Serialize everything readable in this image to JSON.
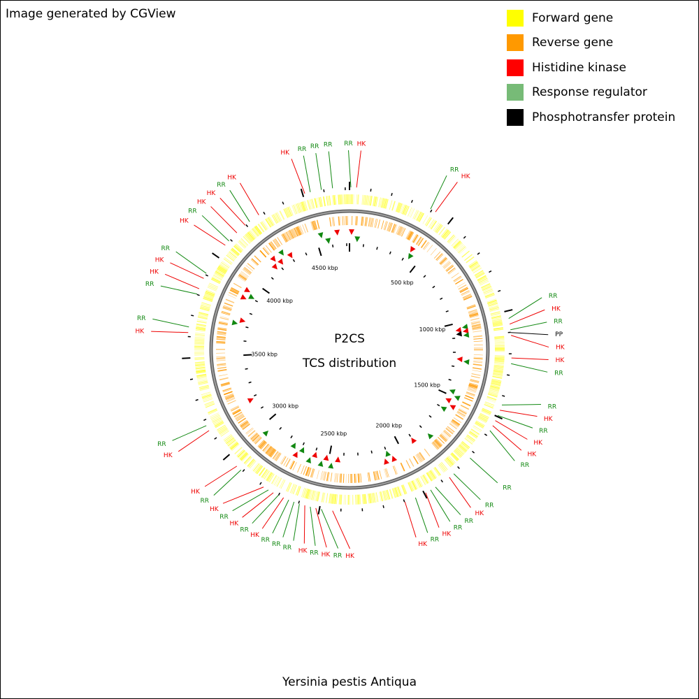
{
  "credit": "Image generated by CGView",
  "organism": "Yersinia pestis Antiqua",
  "center": {
    "line1": "P2CS",
    "line2": "TCS distribution"
  },
  "legend": [
    {
      "label": "Forward gene",
      "color": "#ffff00",
      "icon": "square-swatch"
    },
    {
      "label": "Reverse gene",
      "color": "#ff9900",
      "icon": "square-swatch"
    },
    {
      "label": "Histidine kinase",
      "color": "#ff0000",
      "icon": "square-swatch"
    },
    {
      "label": "Response regulator",
      "color": "#77bb77",
      "icon": "square-swatch"
    },
    {
      "label": "Phosphotransfer protein",
      "color": "#000000",
      "icon": "square-swatch"
    }
  ],
  "colors": {
    "forward": "#ffff44",
    "reverse": "#ff9900",
    "backbone": "#777777",
    "hk": "#ee0000",
    "rr": "#118811",
    "pp": "#000000"
  },
  "genome": {
    "length_kbp": 4720,
    "tick_labels": [
      "500 kbp",
      "1000 kbp",
      "1500 kbp",
      "2000 kbp",
      "2500 kbp",
      "3000 kbp",
      "3500 kbp",
      "4000 kbp",
      "4500 kbp"
    ],
    "tick_values_kbp": [
      500,
      1000,
      1500,
      2000,
      2500,
      3000,
      3500,
      4000,
      4500
    ]
  },
  "features": [
    {
      "type": "RR",
      "deg": 0.5
    },
    {
      "type": "HK",
      "deg": 2.5
    },
    {
      "type": "RR",
      "deg": 30
    },
    {
      "type": "HK",
      "deg": 32
    },
    {
      "type": "RR",
      "deg": 79
    },
    {
      "type": "HK",
      "deg": 81
    },
    {
      "type": "RR",
      "deg": 83
    },
    {
      "type": "PP",
      "deg": 84
    },
    {
      "type": "HK",
      "deg": 85
    },
    {
      "type": "HK",
      "deg": 93
    },
    {
      "type": "RR",
      "deg": 95
    },
    {
      "type": "RR",
      "deg": 110
    },
    {
      "type": "HK",
      "deg": 112
    },
    {
      "type": "RR",
      "deg": 114
    },
    {
      "type": "HK",
      "deg": 116
    },
    {
      "type": "HK",
      "deg": 118
    },
    {
      "type": "RR",
      "deg": 120
    },
    {
      "type": "RR",
      "deg": 132
    },
    {
      "type": "RR",
      "deg": 140
    },
    {
      "type": "HK",
      "deg": 142
    },
    {
      "type": "RR",
      "deg": 148
    },
    {
      "type": "RR",
      "deg": 150
    },
    {
      "type": "HK",
      "deg": 152
    },
    {
      "type": "RR",
      "deg": 156
    },
    {
      "type": "HK",
      "deg": 160
    },
    {
      "type": "HK",
      "deg": 186
    },
    {
      "type": "RR",
      "deg": 190
    },
    {
      "type": "HK",
      "deg": 192
    },
    {
      "type": "RR",
      "deg": 194
    },
    {
      "type": "HK",
      "deg": 196
    },
    {
      "type": "RR",
      "deg": 198
    },
    {
      "type": "RR",
      "deg": 200
    },
    {
      "type": "RR",
      "deg": 202
    },
    {
      "type": "HK",
      "deg": 204
    },
    {
      "type": "RR",
      "deg": 206
    },
    {
      "type": "HK",
      "deg": 208
    },
    {
      "type": "RR",
      "deg": 210
    },
    {
      "type": "HK",
      "deg": 212
    },
    {
      "type": "RR",
      "deg": 222
    },
    {
      "type": "HK",
      "deg": 224
    },
    {
      "type": "HK",
      "deg": 240
    },
    {
      "type": "RR",
      "deg": 242
    },
    {
      "type": "HK",
      "deg": 276
    },
    {
      "type": "RR",
      "deg": 278
    },
    {
      "type": "RR",
      "deg": 290
    },
    {
      "type": "HK",
      "deg": 292
    },
    {
      "type": "HK",
      "deg": 296
    },
    {
      "type": "RR",
      "deg": 298
    },
    {
      "type": "HK",
      "deg": 310
    },
    {
      "type": "RR",
      "deg": 312
    },
    {
      "type": "HK",
      "deg": 316
    },
    {
      "type": "HK",
      "deg": 320
    },
    {
      "type": "RR",
      "deg": 322
    },
    {
      "type": "HK",
      "deg": 326
    },
    {
      "type": "HK",
      "deg": 344
    },
    {
      "type": "RR",
      "deg": 346
    },
    {
      "type": "RR",
      "deg": 350
    },
    {
      "type": "RR",
      "deg": 354
    }
  ],
  "inner_markers": [
    {
      "type": "HK",
      "deg": 1
    },
    {
      "type": "RR",
      "deg": 4
    },
    {
      "type": "HK",
      "deg": 32
    },
    {
      "type": "RR",
      "deg": 33
    },
    {
      "type": "RR",
      "deg": 79
    },
    {
      "type": "HK",
      "deg": 80
    },
    {
      "type": "HK",
      "deg": 81
    },
    {
      "type": "PP",
      "deg": 82
    },
    {
      "type": "RR",
      "deg": 83
    },
    {
      "type": "HK",
      "deg": 95
    },
    {
      "type": "RR",
      "deg": 96
    },
    {
      "type": "RR",
      "deg": 112
    },
    {
      "type": "RR",
      "deg": 114
    },
    {
      "type": "HK",
      "deg": 117
    },
    {
      "type": "HK",
      "deg": 119
    },
    {
      "type": "RR",
      "deg": 122
    },
    {
      "type": "RR",
      "deg": 137
    },
    {
      "type": "HK",
      "deg": 145
    },
    {
      "type": "HK",
      "deg": 158
    },
    {
      "type": "RR",
      "deg": 160
    },
    {
      "type": "HK",
      "deg": 162
    },
    {
      "type": "HK",
      "deg": 186
    },
    {
      "type": "RR",
      "deg": 189
    },
    {
      "type": "HK",
      "deg": 192
    },
    {
      "type": "RR",
      "deg": 194
    },
    {
      "type": "HK",
      "deg": 198
    },
    {
      "type": "RR",
      "deg": 200
    },
    {
      "type": "RR",
      "deg": 205
    },
    {
      "type": "HK",
      "deg": 207
    },
    {
      "type": "RR",
      "deg": 210
    },
    {
      "type": "RR",
      "deg": 225
    },
    {
      "type": "HK",
      "deg": 243
    },
    {
      "type": "RR",
      "deg": 283
    },
    {
      "type": "HK",
      "deg": 285
    },
    {
      "type": "HK",
      "deg": 296
    },
    {
      "type": "RR",
      "deg": 298
    },
    {
      "type": "HK",
      "deg": 300
    },
    {
      "type": "HK",
      "deg": 318
    },
    {
      "type": "HK",
      "deg": 320
    },
    {
      "type": "HK",
      "deg": 322
    },
    {
      "type": "RR",
      "deg": 325
    },
    {
      "type": "HK",
      "deg": 328
    },
    {
      "type": "RR",
      "deg": 346
    },
    {
      "type": "RR",
      "deg": 349
    },
    {
      "type": "HK",
      "deg": 354
    }
  ]
}
